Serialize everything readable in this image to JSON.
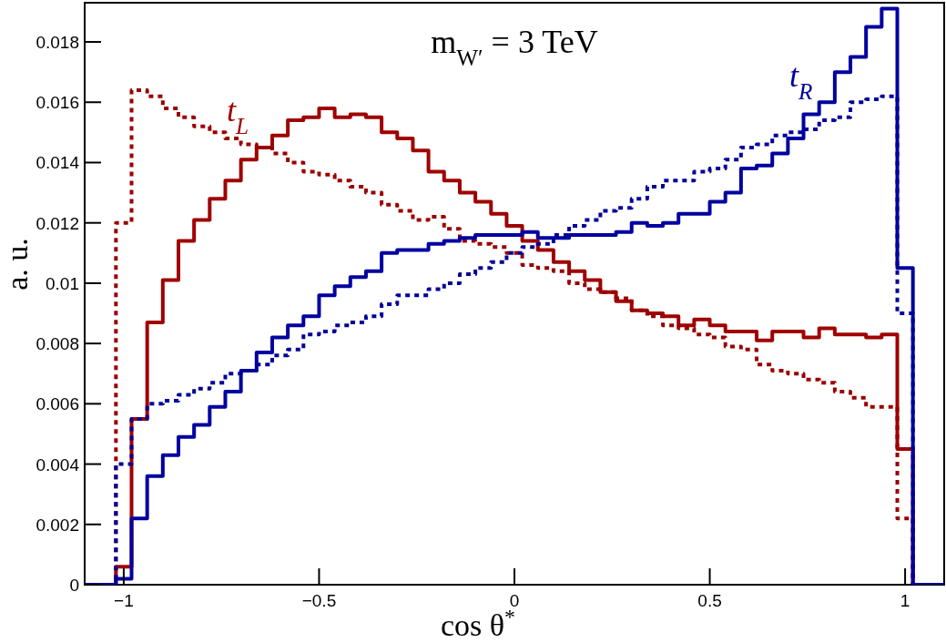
{
  "chart_data": {
    "type": "histogram",
    "title": "m$_{W′}$ = 3 TeV",
    "xlabel": "cos θ$^{*}$",
    "ylabel": "a. u.",
    "bins": [
      -1.1,
      -1.06,
      -1.02,
      -0.98,
      -0.94,
      -0.9,
      -0.86,
      -0.82,
      -0.78,
      -0.74,
      -0.7,
      -0.66,
      -0.62,
      -0.58,
      -0.54,
      -0.5,
      -0.46,
      -0.42,
      -0.38,
      -0.34,
      -0.3,
      -0.26,
      -0.22,
      -0.18,
      -0.14,
      -0.1,
      -0.06,
      -0.02,
      0.02,
      0.06,
      0.1,
      0.14,
      0.18,
      0.22,
      0.26,
      0.3,
      0.34,
      0.38,
      0.42,
      0.46,
      0.5,
      0.54,
      0.58,
      0.62,
      0.66,
      0.7,
      0.74,
      0.78,
      0.82,
      0.86,
      0.9,
      0.94,
      0.98,
      1.02,
      1.06,
      1.1
    ],
    "series": [
      {
        "name": "t$_{L}$",
        "color": "#a00000",
        "line_style": "solid",
        "values": [
          0,
          0,
          0.0006,
          0.0055,
          0.0087,
          0.0101,
          0.0114,
          0.0121,
          0.0128,
          0.0134,
          0.0141,
          0.0145,
          0.0149,
          0.0154,
          0.0155,
          0.0158,
          0.0155,
          0.0156,
          0.0155,
          0.015,
          0.0148,
          0.0144,
          0.0137,
          0.0134,
          0.013,
          0.0127,
          0.0123,
          0.0119,
          0.0114,
          0.0111,
          0.0107,
          0.0104,
          0.0101,
          0.0097,
          0.0094,
          0.0091,
          0.009,
          0.0089,
          0.0086,
          0.0088,
          0.0086,
          0.0084,
          0.0084,
          0.0081,
          0.0084,
          0.0084,
          0.0082,
          0.0085,
          0.0083,
          0.0083,
          0.0082,
          0.0083,
          0.0045,
          0,
          0
        ]
      },
      {
        "color": "#990000",
        "line_style": "dotted",
        "values": [
          0,
          0,
          0.012,
          0.0164,
          0.0162,
          0.0158,
          0.0155,
          0.0152,
          0.015,
          0.0148,
          0.0146,
          0.0145,
          0.0143,
          0.014,
          0.0137,
          0.0136,
          0.0134,
          0.0132,
          0.013,
          0.0126,
          0.0124,
          0.0121,
          0.0122,
          0.0118,
          0.0114,
          0.0113,
          0.0112,
          0.011,
          0.0106,
          0.0105,
          0.0104,
          0.01,
          0.0098,
          0.0097,
          0.0095,
          0.0091,
          0.0089,
          0.0086,
          0.0085,
          0.0083,
          0.0082,
          0.0079,
          0.0078,
          0.0073,
          0.0071,
          0.007,
          0.0068,
          0.0067,
          0.0064,
          0.0062,
          0.0059,
          0.0059,
          0.0022,
          0,
          0
        ]
      },
      {
        "name": "t$_{R}$",
        "color": "#0000a0",
        "line_style": "solid",
        "values": [
          0,
          0,
          0.0002,
          0.0022,
          0.0036,
          0.0043,
          0.0049,
          0.0053,
          0.0059,
          0.0064,
          0.0071,
          0.0077,
          0.0082,
          0.0086,
          0.0089,
          0.0096,
          0.0099,
          0.0102,
          0.0104,
          0.011,
          0.0111,
          0.0111,
          0.0113,
          0.0114,
          0.0115,
          0.0116,
          0.0116,
          0.0116,
          0.0117,
          0.0115,
          0.0115,
          0.0116,
          0.0116,
          0.0116,
          0.0117,
          0.012,
          0.0119,
          0.012,
          0.0123,
          0.0123,
          0.0127,
          0.013,
          0.0138,
          0.0139,
          0.0143,
          0.0148,
          0.0156,
          0.016,
          0.017,
          0.0175,
          0.0185,
          0.0191,
          0.0105,
          0,
          0
        ]
      },
      {
        "color": "#000099",
        "line_style": "dotted",
        "values": [
          0,
          0,
          0.004,
          0.0055,
          0.006,
          0.0061,
          0.0063,
          0.0065,
          0.0067,
          0.007,
          0.0071,
          0.0073,
          0.0076,
          0.0078,
          0.0083,
          0.0084,
          0.0086,
          0.0087,
          0.0089,
          0.0093,
          0.0096,
          0.0096,
          0.0098,
          0.01,
          0.0103,
          0.0105,
          0.0107,
          0.011,
          0.0112,
          0.0113,
          0.0116,
          0.0119,
          0.0121,
          0.0124,
          0.0125,
          0.0128,
          0.0132,
          0.0134,
          0.0134,
          0.0137,
          0.0138,
          0.0141,
          0.0145,
          0.0146,
          0.0149,
          0.015,
          0.0151,
          0.0154,
          0.0155,
          0.016,
          0.0161,
          0.0162,
          0.009,
          0,
          0
        ]
      }
    ],
    "xlim": [
      -1.1,
      1.1
    ],
    "xticks": [
      {
        "value": -1,
        "label": "−1"
      },
      {
        "value": -0.5,
        "label": "−0.5"
      },
      0,
      0.5,
      1
    ],
    "ylim": [
      0,
      0.0193
    ],
    "yticks": [
      0,
      0.002,
      0.004,
      0.006,
      0.008,
      0.01,
      0.012,
      0.014,
      0.016,
      0.018
    ]
  }
}
